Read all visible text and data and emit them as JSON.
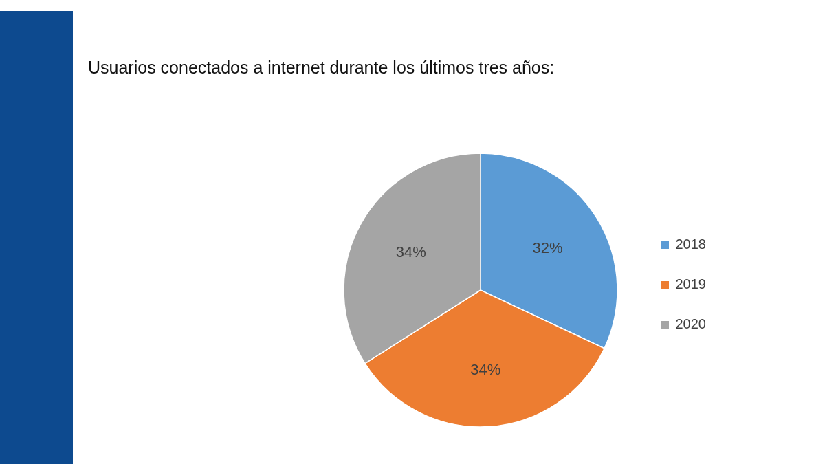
{
  "chart_data": {
    "type": "pie",
    "title": "Usuarios conectados a internet durante los últimos tres años:",
    "categories": [
      "2018",
      "2019",
      "2020"
    ],
    "values": [
      32,
      34,
      34
    ],
    "colors": [
      "#5b9bd5",
      "#ed7d31",
      "#a5a5a5"
    ],
    "value_labels": [
      "32%",
      "34%",
      "34%"
    ],
    "legend": "right"
  }
}
